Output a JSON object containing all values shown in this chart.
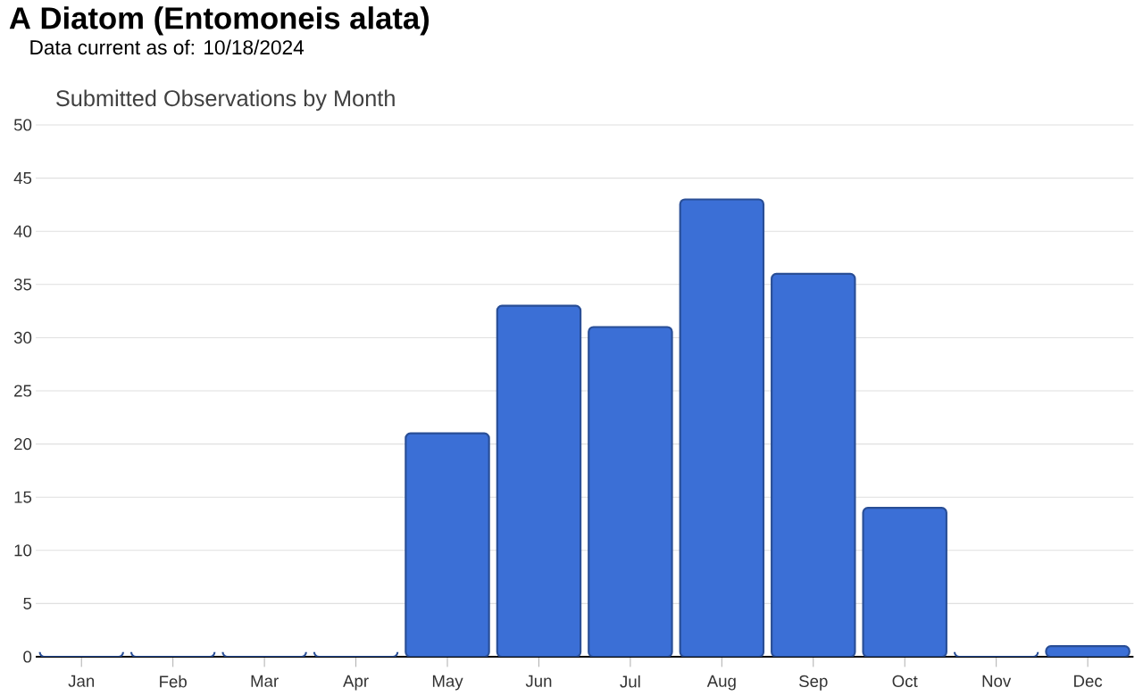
{
  "chart_data": {
    "type": "bar",
    "title": "A Diatom   (Entomoneis alata)",
    "subtitle": "Submitted Observations by Month",
    "annotations": [
      "Data current as of: 10/18/2024"
    ],
    "categories": [
      "Jan",
      "Feb",
      "Mar",
      "Apr",
      "May",
      "Jun",
      "Jul",
      "Aug",
      "Sep",
      "Oct",
      "Nov",
      "Dec"
    ],
    "values": [
      0,
      0,
      0,
      0,
      21,
      33,
      31,
      43,
      36,
      14,
      0,
      1
    ],
    "color": "#3b6fd6",
    "ylim": [
      0,
      50
    ],
    "yticks": [
      0,
      5,
      10,
      15,
      20,
      25,
      30,
      35,
      40,
      45,
      50
    ],
    "grid": "y"
  }
}
